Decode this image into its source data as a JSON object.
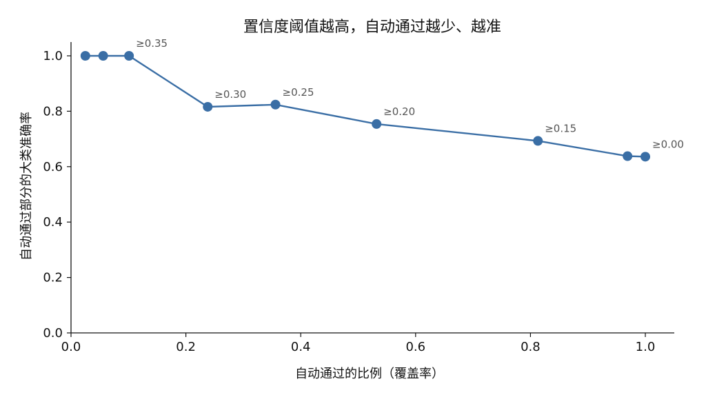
{
  "chart_data": {
    "type": "line",
    "title": "置信度阈值越高，自动通过越少、越准",
    "xlabel": "自动通过的比例（覆盖率）",
    "ylabel": "自动通过部分的大类准确率",
    "xlim": [
      0.0,
      1.05
    ],
    "ylim": [
      0.0,
      1.05
    ],
    "xticks": [
      "0.0",
      "0.2",
      "0.4",
      "0.6",
      "0.8",
      "1.0"
    ],
    "yticks": [
      "0.0",
      "0.2",
      "0.4",
      "0.6",
      "0.8",
      "1.0"
    ],
    "grid": false,
    "color": "#3a6ea5",
    "series": [
      {
        "x": [
          0.025,
          0.056,
          0.101,
          0.238,
          0.356,
          0.532,
          0.813,
          0.969,
          1.0
        ],
        "y": [
          1.0,
          1.0,
          1.0,
          0.816,
          0.824,
          0.754,
          0.693,
          0.638,
          0.636
        ]
      }
    ],
    "annotations": [
      {
        "text": "≥0.35",
        "x": 0.101,
        "y": 1.0
      },
      {
        "text": "≥0.30",
        "x": 0.238,
        "y": 0.816
      },
      {
        "text": "≥0.25",
        "x": 0.356,
        "y": 0.824
      },
      {
        "text": "≥0.20",
        "x": 0.532,
        "y": 0.754
      },
      {
        "text": "≥0.15",
        "x": 0.813,
        "y": 0.693
      },
      {
        "text": "≥0.00",
        "x": 1.0,
        "y": 0.636
      }
    ]
  }
}
